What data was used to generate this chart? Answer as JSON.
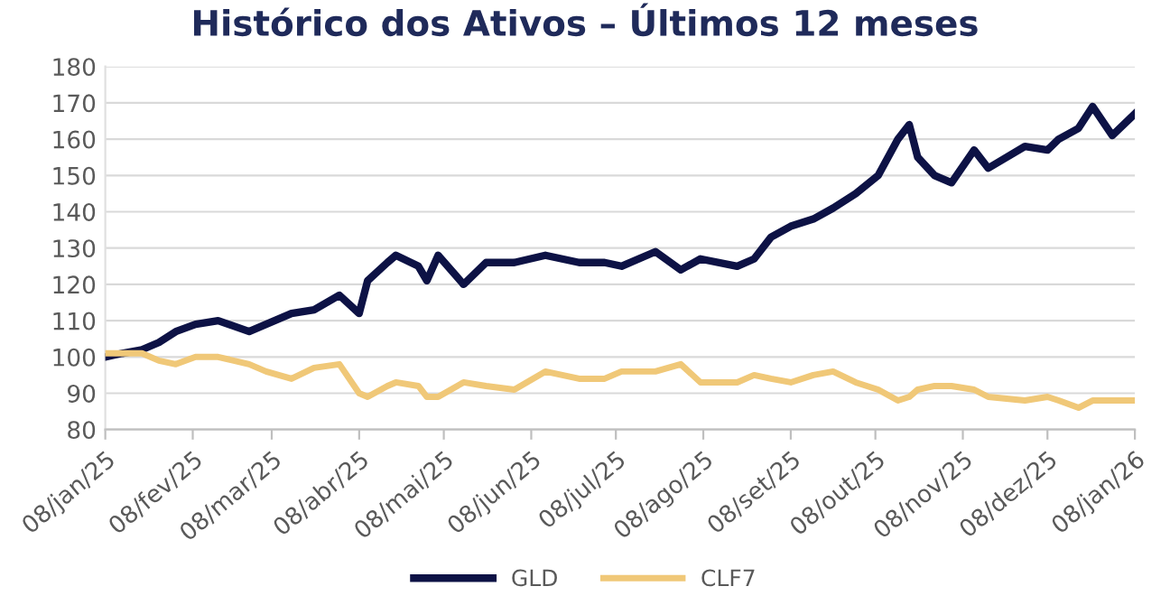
{
  "chart_data": {
    "type": "line",
    "title": "Histórico dos Ativos – Últimos 12 meses",
    "x": [
      "2025-01-08",
      "2025-01-14",
      "2025-01-21",
      "2025-01-27",
      "2025-02-02",
      "2025-02-09",
      "2025-02-17",
      "2025-02-28",
      "2025-03-06",
      "2025-03-15",
      "2025-03-23",
      "2025-04-01",
      "2025-04-08",
      "2025-04-11",
      "2025-04-18",
      "2025-04-21",
      "2025-04-29",
      "2025-05-02",
      "2025-05-06",
      "2025-05-15",
      "2025-05-23",
      "2025-06-02",
      "2025-06-13",
      "2025-06-25",
      "2025-07-04",
      "2025-07-10",
      "2025-07-22",
      "2025-07-31",
      "2025-08-07",
      "2025-08-20",
      "2025-08-26",
      "2025-09-01",
      "2025-09-08",
      "2025-09-16",
      "2025-09-23",
      "2025-10-01",
      "2025-10-09",
      "2025-10-16",
      "2025-10-20",
      "2025-10-23",
      "2025-10-29",
      "2025-11-04",
      "2025-11-12",
      "2025-11-17",
      "2025-11-30",
      "2025-12-08",
      "2025-12-12",
      "2025-12-19",
      "2025-12-24",
      "2025-12-31",
      "2026-01-08"
    ],
    "series": [
      {
        "name": "GLD",
        "color": "#0d1245",
        "values": [
          100,
          101,
          102,
          104,
          107,
          109,
          110,
          107,
          109,
          112,
          113,
          117,
          112,
          121,
          126,
          128,
          125,
          121,
          128,
          120,
          126,
          126,
          128,
          126,
          126,
          125,
          129,
          124,
          127,
          125,
          127,
          133,
          136,
          138,
          141,
          145,
          150,
          160,
          164,
          155,
          150,
          148,
          157,
          152,
          158,
          157,
          160,
          163,
          169,
          161,
          167
        ]
      },
      {
        "name": "CLF7",
        "color": "#f0c878",
        "values": [
          101,
          101,
          101,
          99,
          98,
          100,
          100,
          98,
          96,
          94,
          97,
          98,
          90,
          89,
          92,
          93,
          92,
          89,
          89,
          93,
          92,
          91,
          96,
          94,
          94,
          96,
          96,
          98,
          93,
          93,
          95,
          94,
          93,
          95,
          96,
          93,
          91,
          88,
          89,
          91,
          92,
          92,
          91,
          89,
          88,
          89,
          88,
          86,
          88,
          88,
          88
        ]
      }
    ],
    "xlim": [
      "2025-01-08",
      "2026-01-08"
    ],
    "xticks": [
      {
        "value": "2025-01-08",
        "label": "08/jan/25"
      },
      {
        "value": "2025-02-08",
        "label": "08/fev/25"
      },
      {
        "value": "2025-03-08",
        "label": "08/mar/25"
      },
      {
        "value": "2025-04-08",
        "label": "08/abr/25"
      },
      {
        "value": "2025-05-08",
        "label": "08/mai/25"
      },
      {
        "value": "2025-06-08",
        "label": "08/jun/25"
      },
      {
        "value": "2025-07-08",
        "label": "08/jul/25"
      },
      {
        "value": "2025-08-08",
        "label": "08/ago/25"
      },
      {
        "value": "2025-09-08",
        "label": "08/set/25"
      },
      {
        "value": "2025-10-08",
        "label": "08/out/25"
      },
      {
        "value": "2025-11-08",
        "label": "08/nov/25"
      },
      {
        "value": "2025-12-08",
        "label": "08/dez/25"
      },
      {
        "value": "2026-01-08",
        "label": "08/jan/26"
      }
    ],
    "ylim": [
      80,
      180
    ],
    "yticks": [
      80,
      90,
      100,
      110,
      120,
      130,
      140,
      150,
      160,
      170,
      180
    ],
    "grid": "y",
    "legend": "bottom",
    "marker": "none",
    "line_style": "solid"
  }
}
